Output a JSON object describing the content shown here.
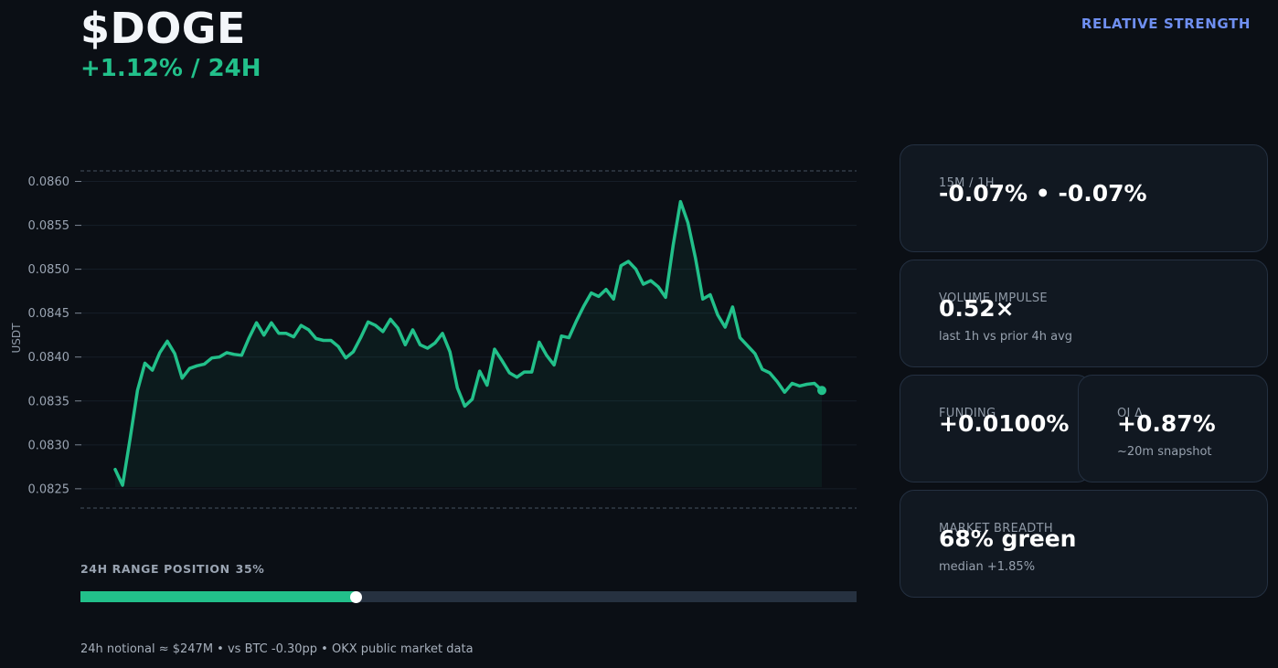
{
  "header": {
    "ticker": "$DOGE",
    "change": "+1.12% / 24H",
    "relative_strength": "RELATIVE STRENGTH"
  },
  "colors": {
    "background": "#0b0f15",
    "accent_green": "#22c08a",
    "accent_blue": "#6f8ff0",
    "card_bg": "#111821"
  },
  "chart_data": {
    "type": "line",
    "ylabel": "USDT",
    "ylim": [
      0.08228,
      0.08612
    ],
    "y_ticks": [
      "0.0860",
      "0.0855",
      "0.0850",
      "0.0845",
      "0.0840",
      "0.0835",
      "0.0830",
      "0.0825"
    ],
    "range_high": 0.08612,
    "range_low": 0.08228,
    "grid": true,
    "area_fill": true,
    "series": [
      {
        "values": [
          0.08272,
          0.08254,
          0.08307,
          0.08362,
          0.08393,
          0.08385,
          0.08405,
          0.08418,
          0.08404,
          0.08376,
          0.08387,
          0.0839,
          0.08392,
          0.08399,
          0.084,
          0.08405,
          0.08403,
          0.08402,
          0.08422,
          0.08439,
          0.08425,
          0.08439,
          0.08427,
          0.08427,
          0.08423,
          0.08436,
          0.08431,
          0.08421,
          0.08419,
          0.08419,
          0.08412,
          0.08399,
          0.08406,
          0.08422,
          0.0844,
          0.08436,
          0.08429,
          0.08443,
          0.08433,
          0.08414,
          0.08431,
          0.08414,
          0.0841,
          0.08416,
          0.08427,
          0.08406,
          0.08365,
          0.08344,
          0.08352,
          0.08384,
          0.08368,
          0.08409,
          0.08396,
          0.08382,
          0.08377,
          0.08383,
          0.08383,
          0.08417,
          0.08402,
          0.08391,
          0.08424,
          0.08422,
          0.08441,
          0.08458,
          0.08473,
          0.08469,
          0.08477,
          0.08466,
          0.08504,
          0.08509,
          0.085,
          0.08483,
          0.08487,
          0.0848,
          0.08468,
          0.08527,
          0.08577,
          0.08553,
          0.08513,
          0.08466,
          0.08471,
          0.08448,
          0.08434,
          0.08457,
          0.08422,
          0.08413,
          0.08404,
          0.08386,
          0.08382,
          0.08372,
          0.0836,
          0.0837,
          0.08367,
          0.08369,
          0.0837,
          0.08362
        ]
      }
    ]
  },
  "range": {
    "label": "24H RANGE POSITION",
    "value_text": "35%",
    "position": 0.355
  },
  "footer": {
    "text": "24h notional ≈ $247M  •  vs BTC -0.30pp  •  OKX public market data"
  },
  "cards": {
    "momentum": {
      "label": "15M / 1H",
      "value": "-0.07%  •  -0.07%"
    },
    "volume": {
      "label": "VOLUME IMPULSE",
      "value": "0.52×",
      "sub": "last 1h vs prior 4h avg"
    },
    "funding": {
      "label": "FUNDING",
      "value": "+0.0100%"
    },
    "oi": {
      "label": "OI Δ",
      "value": "+0.87%",
      "sub": "~20m snapshot"
    },
    "breadth": {
      "label": "MARKET BREADTH",
      "value": "68% green",
      "sub": "median +1.85%"
    }
  }
}
